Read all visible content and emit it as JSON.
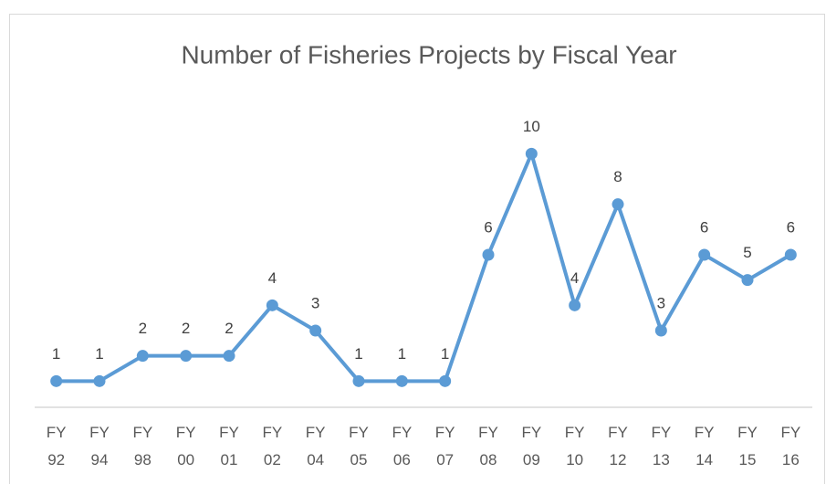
{
  "chart_data": {
    "type": "line",
    "title": "Number of Fisheries Projects by Fiscal Year",
    "categories": [
      "FY 92",
      "FY 94",
      "FY 98",
      "FY 00",
      "FY 01",
      "FY 02",
      "FY 04",
      "FY 05",
      "FY 06",
      "FY 07",
      "FY 08",
      "FY 09",
      "FY 10",
      "FY 12",
      "FY 13",
      "FY 14",
      "FY 15",
      "FY 16"
    ],
    "values": [
      1,
      1,
      2,
      2,
      2,
      4,
      3,
      1,
      1,
      1,
      6,
      10,
      4,
      8,
      3,
      6,
      5,
      6
    ],
    "color": "#5b9bd5",
    "ylim": [
      0,
      12
    ]
  }
}
